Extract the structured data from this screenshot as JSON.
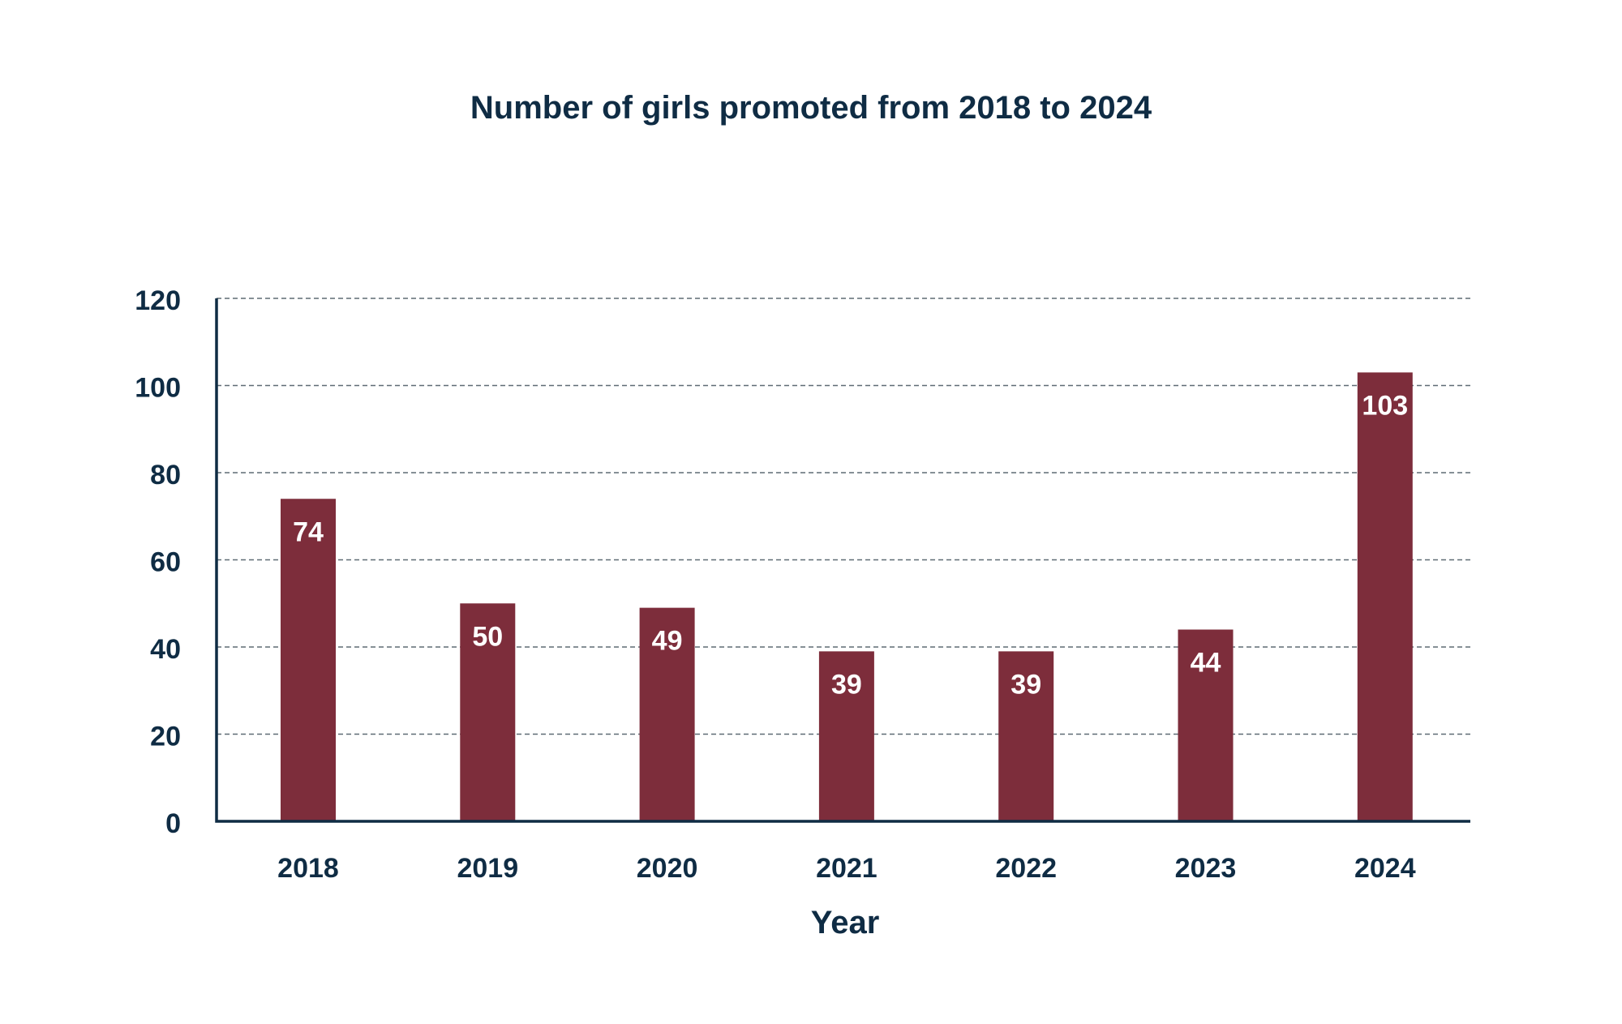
{
  "chart_data": {
    "type": "bar",
    "title": "Number of girls promoted from 2018 to 2024",
    "xlabel": "Year",
    "ylabel": "",
    "categories": [
      "2018",
      "2019",
      "2020",
      "2021",
      "2022",
      "2023",
      "2024"
    ],
    "values": [
      74,
      50,
      49,
      39,
      39,
      44,
      103
    ],
    "data_labels": [
      "74",
      "50",
      "49",
      "39",
      "39",
      "44",
      "103"
    ],
    "ylim": [
      0,
      120
    ],
    "yticks": [
      0,
      20,
      40,
      60,
      80,
      100,
      120
    ],
    "ytick_labels": [
      "0",
      "20",
      "40",
      "60",
      "80",
      "100",
      "120"
    ],
    "grid": true,
    "grid_style": "dashed horizontal",
    "legend": "none",
    "colors": {
      "bar": "#7d2d3b",
      "text": "#0f2c44",
      "data_label": "#ffffff",
      "grid": "#5f6b74"
    }
  }
}
